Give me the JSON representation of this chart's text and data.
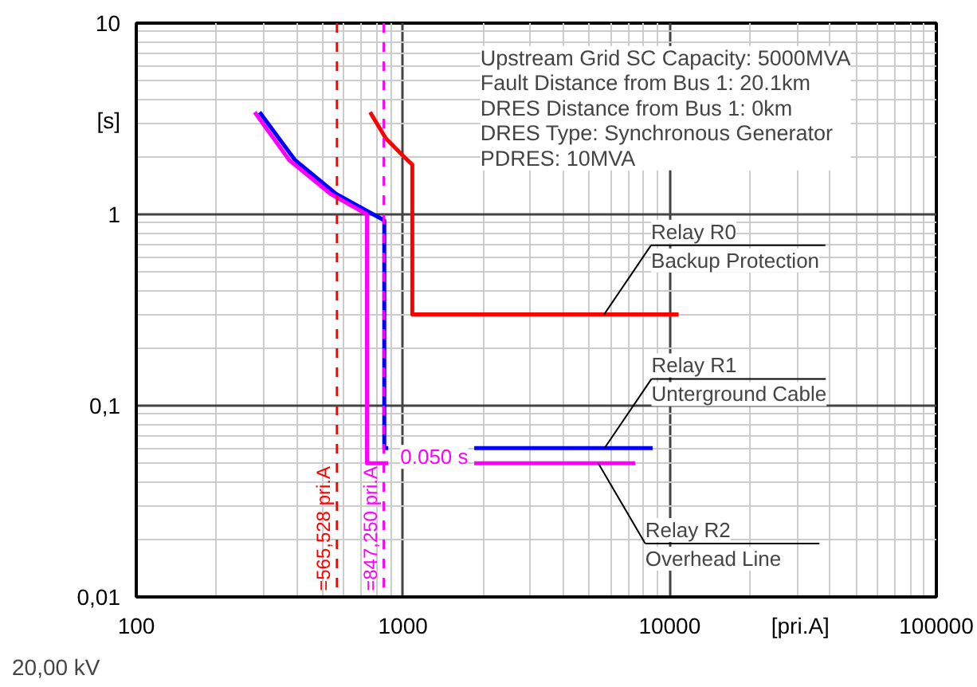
{
  "chart_data": {
    "type": "line",
    "xlabel": "[pri.A]",
    "ylabel": "[s]",
    "log": "xy",
    "xlim": [
      100,
      100000
    ],
    "ylim": [
      0.01,
      10
    ],
    "xticks": [
      100,
      1000,
      10000,
      100000
    ],
    "yticks": [
      {
        "value": 0.01,
        "label": "0,01"
      },
      {
        "value": 0.1,
        "label": "0,1"
      },
      1,
      10
    ],
    "grid": true,
    "line_style": "solid",
    "marker": "none",
    "series": [
      {
        "color": "#ff0000",
        "x": [
          753,
          862,
          1013,
          1084,
          1084,
          10800
        ],
        "values": [
          3.42,
          2.5,
          1.99,
          1.82,
          0.3,
          0.3
        ]
      },
      {
        "color": "#0000ff",
        "x": [
          290,
          394,
          561,
          774,
          851,
          851,
          880,
          1200,
          1850,
          8630
        ],
        "values": [
          3.42,
          1.92,
          1.28,
          1.0,
          0.93,
          0.06,
          0.06,
          null,
          0.06,
          0.06
        ]
      },
      {
        "color": "#ff00ff",
        "x": [
          278,
          375,
          535,
          733,
          733,
          880,
          1200,
          1850,
          7430
        ],
        "values": [
          3.42,
          1.92,
          1.28,
          1.0,
          0.05,
          0.05,
          null,
          0.05,
          0.05
        ]
      }
    ],
    "ref_lines": [
      {
        "axis": "x",
        "value": 565.528,
        "label": "=565,528 pri.A",
        "color": "#ff0000",
        "line_style": "dashed"
      },
      {
        "axis": "x",
        "value": 847.25,
        "label": "=847,250 pri.A",
        "color": "#ff00ff",
        "line_style": "dashed"
      }
    ],
    "annotations": [
      "20,00 kV",
      "Upstream Grid SC Capacity: 5000MVA\nFault Distance from Bus 1: 20.1km\nDRES Distance from Bus 1: 0km\nDRES Type: Synchronous Generator\nPDRES: 10MVA",
      {
        "text": "Relay R0\nBackup Protection",
        "x": 5680,
        "y": 0.3
      },
      {
        "text": "Relay R1\nUnterground Cable",
        "x": 5700,
        "y": 0.06
      },
      {
        "text": "Relay R2\nOverhead Line",
        "x": 5400,
        "y": 0.05
      },
      {
        "text": "0.050 s",
        "x": 1310,
        "y": 0.054
      }
    ]
  }
}
